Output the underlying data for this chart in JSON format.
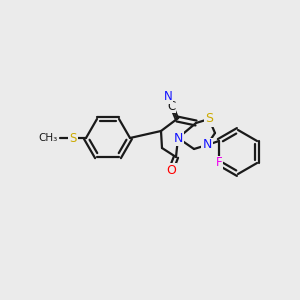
{
  "background_color": "#ebebeb",
  "bond_color": "#1a1a1a",
  "atom_colors": {
    "N": "#1414ff",
    "S": "#ccaa00",
    "O": "#ff0000",
    "F": "#ee00ee",
    "C": "#1a1a1a"
  },
  "figsize": [
    3.0,
    3.0
  ],
  "dpi": 100
}
